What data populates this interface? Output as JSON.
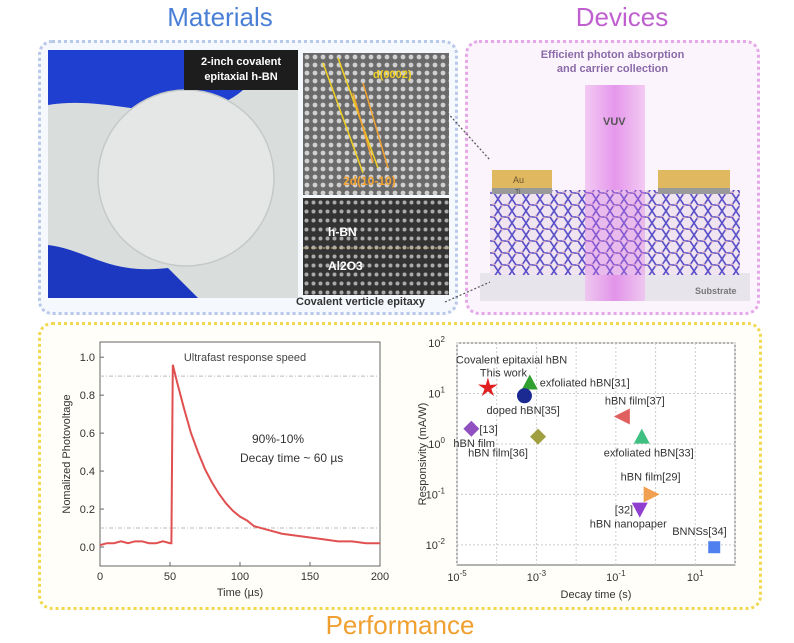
{
  "sections": {
    "materials": {
      "title": "Materials",
      "photo_label_line1": "2-inch covalent",
      "photo_label_line2": "epitaxial h-BN",
      "tem_top_labels": [
        "d(0002)",
        "2d(10-10)"
      ],
      "tem_bottom_labels": [
        "h-BN",
        "Al2O3"
      ],
      "caption": "Covalent verticle epitaxy"
    },
    "devices": {
      "title": "Devices",
      "subtitle_line1": "Efficient photon absorption",
      "subtitle_line2": "and carrier collection",
      "beam_label": "VUV",
      "electrode_labels": [
        "Au",
        "Ti"
      ],
      "substrate_label": "Substrate"
    },
    "performance": {
      "title": "Performance"
    }
  },
  "colors": {
    "materials": "#4a7fd6",
    "devices": "#c060d0",
    "performance": "#f0a030",
    "curve": "#e05050"
  },
  "chart_data": [
    {
      "type": "line",
      "title": "Ultrafast response speed",
      "annotation_line1": "90%-10%",
      "annotation_line2": "Decay time ~ 60 µs",
      "xlabel": "Time (µs)",
      "ylabel": "Nomalized Photovoltage",
      "xlim": [
        0,
        200
      ],
      "ylim": [
        -0.1,
        1.08
      ],
      "xticks": [
        "0",
        "50",
        "100",
        "150",
        "200"
      ],
      "yticks": [
        "0.0",
        "0.2",
        "0.4",
        "0.6",
        "0.8",
        "1.0"
      ],
      "reference_lines": [
        0.9,
        0.1
      ],
      "series": [
        {
          "x": [
            0,
            5,
            10,
            15,
            20,
            25,
            30,
            35,
            40,
            45,
            50,
            51,
            52,
            55,
            60,
            65,
            70,
            75,
            80,
            85,
            90,
            95,
            100,
            105,
            110,
            115,
            120,
            130,
            140,
            150,
            160,
            170,
            180,
            190,
            200
          ],
          "y": [
            0.01,
            0.02,
            0.02,
            0.03,
            0.02,
            0.03,
            0.03,
            0.02,
            0.02,
            0.03,
            0.02,
            0.02,
            0.96,
            0.87,
            0.73,
            0.6,
            0.5,
            0.41,
            0.34,
            0.28,
            0.23,
            0.19,
            0.16,
            0.14,
            0.11,
            0.1,
            0.09,
            0.07,
            0.06,
            0.05,
            0.04,
            0.03,
            0.03,
            0.02,
            0.02
          ]
        }
      ]
    },
    {
      "type": "scatter",
      "xlabel": "Decay time (s)",
      "ylabel": "Responsivity (mA/W)",
      "xscale": "log",
      "yscale": "log",
      "xlim": [
        1e-05,
        100
      ],
      "ylim": [
        0.004,
        100
      ],
      "xticks": [
        "10-5",
        "10-3",
        "10-1",
        "101"
      ],
      "yticks": [
        "10-2",
        "10-1",
        "100",
        "101",
        "102"
      ],
      "grid": true,
      "points": [
        {
          "label": "Covalent epitaxial hBN",
          "label2": "This work",
          "x": 6e-05,
          "y": 13,
          "marker": "star",
          "color": "#e02020"
        },
        {
          "label": "exfoliated hBN[31]",
          "x": 0.00068,
          "y": 16.5,
          "marker": "triangle-up-half",
          "color": "#30a030"
        },
        {
          "label": "doped hBN[35]",
          "x": 0.0005,
          "y": 9,
          "marker": "circle-half",
          "color": "#1a2a90"
        },
        {
          "label": "[13]",
          "label2": "hBN film",
          "x": 2.3e-05,
          "y": 2,
          "marker": "diamond-half",
          "color": "#9050c0"
        },
        {
          "label": "hBN film[36]",
          "x": 0.0011,
          "y": 1.4,
          "marker": "diamond-half-right",
          "color": "#a0a040"
        },
        {
          "label": "hBN film[37]",
          "x": 0.15,
          "y": 3.5,
          "marker": "triangle-left-half",
          "color": "#e06060"
        },
        {
          "label": "exfoliated hBN[33]",
          "x": 0.45,
          "y": 1.4,
          "marker": "triangle-up",
          "color": "#40c080"
        },
        {
          "label": "hBN film[29]",
          "x": 0.75,
          "y": 0.1,
          "marker": "triangle-right",
          "color": "#f0a050"
        },
        {
          "label": "[32]",
          "label2": "hBN nanopaper",
          "x": 0.4,
          "y": 0.05,
          "marker": "triangle-down",
          "color": "#9040d0"
        },
        {
          "label": "BNNSs[34]",
          "x": 30,
          "y": 0.009,
          "marker": "square",
          "color": "#5080f0"
        }
      ]
    }
  ]
}
